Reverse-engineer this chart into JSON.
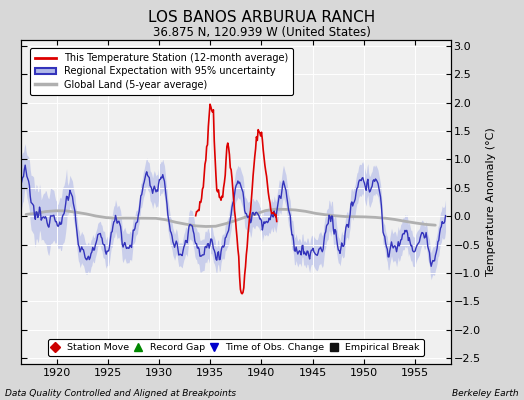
{
  "title": "LOS BANOS ARBURUA RANCH",
  "subtitle": "36.875 N, 120.939 W (United States)",
  "xlabel_left": "Data Quality Controlled and Aligned at Breakpoints",
  "xlabel_right": "Berkeley Earth",
  "ylabel": "Temperature Anomaly (°C)",
  "xlim": [
    1916.5,
    1958.5
  ],
  "ylim": [
    -2.6,
    3.1
  ],
  "yticks": [
    -2.5,
    -2,
    -1.5,
    -1,
    -0.5,
    0,
    0.5,
    1,
    1.5,
    2,
    2.5,
    3
  ],
  "xticks": [
    1920,
    1925,
    1930,
    1935,
    1940,
    1945,
    1950,
    1955
  ],
  "bg_color": "#d8d8d8",
  "plot_bg_color": "#f0f0f0",
  "regional_color": "#3333bb",
  "regional_fill_color": "#b0b8e8",
  "station_color": "#dd0000",
  "global_color": "#b0b0b0",
  "legend_items": [
    "This Temperature Station (12-month average)",
    "Regional Expectation with 95% uncertainty",
    "Global Land (5-year average)"
  ],
  "legend_markers": [
    {
      "label": "Station Move",
      "color": "#cc0000",
      "marker": "D"
    },
    {
      "label": "Record Gap",
      "color": "#008800",
      "marker": "^"
    },
    {
      "label": "Time of Obs. Change",
      "color": "#0000cc",
      "marker": "v"
    },
    {
      "label": "Empirical Break",
      "color": "#111111",
      "marker": "s"
    }
  ]
}
